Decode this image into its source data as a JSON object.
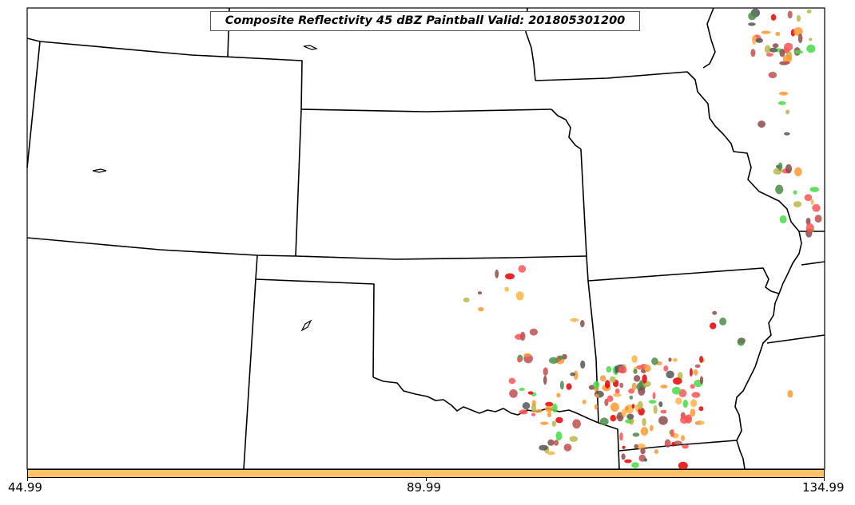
{
  "title": "Composite Reflectivity 45 dBZ Paintball Valid: 201805301200",
  "colorbar": {
    "color": "#ffc266",
    "tick_labels": [
      "44.99",
      "89.99",
      "134.99"
    ]
  },
  "colors": {
    "state_border": "#000000",
    "frame": "#000000",
    "member_colors": [
      "#ff5555",
      "#c0504d",
      "#8c4a4a",
      "#ffb347",
      "#ff9933",
      "#b8b84a",
      "#4a8c4a",
      "#44dd44",
      "#555555",
      "#e60000"
    ]
  }
}
